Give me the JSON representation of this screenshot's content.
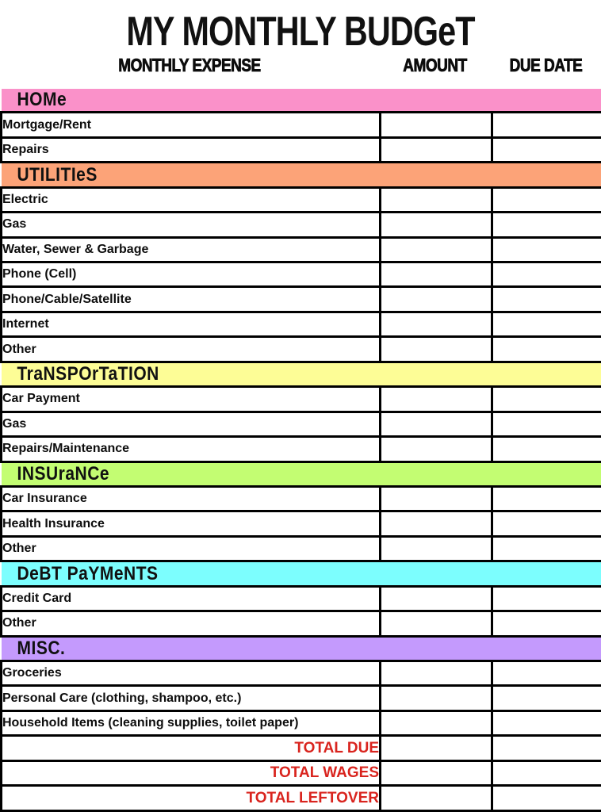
{
  "title": "MY MONTHLY BUDGeT",
  "columns": {
    "expense": "MONTHLY EXPENSE",
    "amount": "AMOUNT",
    "due_date": "DUE DATE"
  },
  "sections": [
    {
      "name": "HOMe",
      "color": "#FA91C9",
      "items": [
        "Mortgage/Rent",
        "Repairs"
      ]
    },
    {
      "name": "UTILITIeS",
      "color": "#FCA378",
      "items": [
        "Electric",
        "Gas",
        "Water, Sewer & Garbage",
        "Phone (Cell)",
        "Phone/Cable/Satellite",
        "Internet",
        "Other"
      ]
    },
    {
      "name": "TraNSPOrTaTION",
      "color": "#FDFD96",
      "items": [
        "Car Payment",
        "Gas",
        "Repairs/Maintenance"
      ]
    },
    {
      "name": "INSUraNCe",
      "color": "#C3FD72",
      "items": [
        "Car Insurance",
        "Health Insurance",
        "Other"
      ]
    },
    {
      "name": "DeBT PaYMeNTS",
      "color": "#7CFEFE",
      "items": [
        "Credit Card",
        "Other"
      ]
    },
    {
      "name": "MISC.",
      "color": "#C49AFD",
      "items": [
        "Groceries",
        "Personal Care (clothing, shampoo, etc.)",
        "Household Items (cleaning supplies, toilet paper)"
      ]
    }
  ],
  "totals": [
    "TOTAL DUE",
    "TOTAL WAGES",
    "TOTAL LEFTOVER"
  ],
  "empty_cell_value": "",
  "colors": {
    "totals_text": "#D9241E",
    "grid_border": "#000000",
    "text": "#0d0d0d",
    "page_background": "#FFFFFF"
  }
}
